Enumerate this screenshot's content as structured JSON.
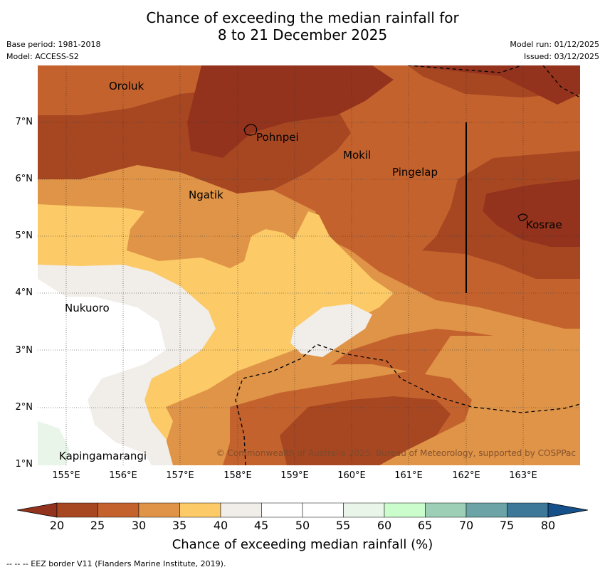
{
  "header": {
    "title_line1": "Chance of exceeding the median rainfall for",
    "title_line2": "8 to 21 December 2025",
    "base_period": "Base period: 1981-2018",
    "model": "Model: ACCESS-S2",
    "model_run": "Model run: 01/12/2025",
    "issued": "Issued: 03/12/2025"
  },
  "map": {
    "lat_ticks": [
      "7°N",
      "6°N",
      "5°N",
      "4°N",
      "3°N",
      "2°N",
      "1°N"
    ],
    "lon_ticks": [
      "155°E",
      "156°E",
      "157°E",
      "158°E",
      "159°E",
      "160°E",
      "161°E",
      "162°E",
      "163°E"
    ],
    "places": {
      "oroluk": "Oroluk",
      "pohnpei": "Pohnpei",
      "mokil": "Mokil",
      "pingelap": "Pingelap",
      "ngatik": "Ngatik",
      "kosrae": "Kosrae",
      "nukuoro": "Nukuoro",
      "kapingamarangi": "Kapingamarangi"
    },
    "copyright": "© Commonwealth of Australia 2025, Bureau of Meteorology, supported by COSPPac"
  },
  "colorbar": {
    "ticks": [
      "20",
      "25",
      "30",
      "35",
      "40",
      "45",
      "50",
      "55",
      "60",
      "65",
      "70",
      "75",
      "80"
    ],
    "colors": [
      "#a74722",
      "#c4622e",
      "#e09448",
      "#fcca66",
      "#f1ede8",
      "#ffffff",
      "#ffffff",
      "#e8f5e8",
      "#cbfccb",
      "#9ccfb6",
      "#6ba3a6",
      "#3e7898",
      "#16508a"
    ],
    "label": "Chance of exceeding median rainfall (%)"
  },
  "footnote": "--  --  -- EEZ border V11 (Flanders Marine Institute, 2019)."
}
